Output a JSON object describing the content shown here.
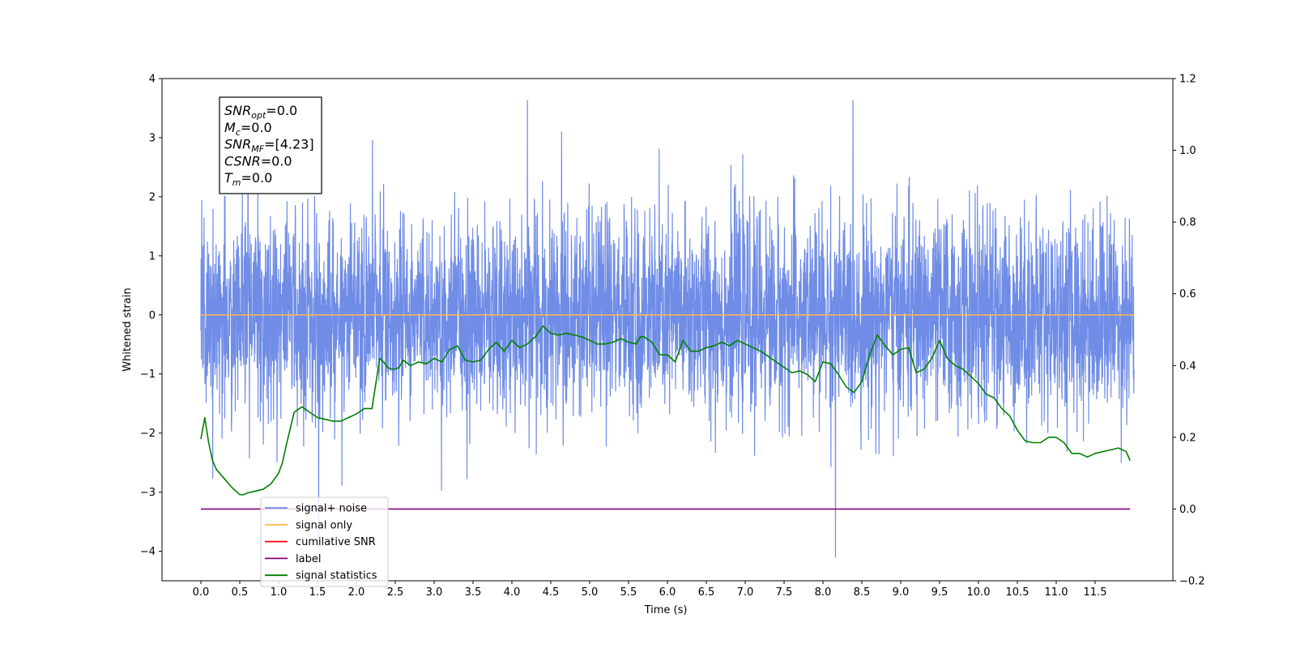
{
  "chart_data": {
    "type": "line",
    "xlabel": "Time (s)",
    "ylabel": "Whitened strain",
    "xlim": [
      -0.5,
      12.5
    ],
    "ylim": [
      -4.5,
      4.0
    ],
    "y2lim": [
      -0.2,
      1.2
    ],
    "x_ticks": [
      "0.0",
      "0.5",
      "1.0",
      "1.5",
      "2.0",
      "2.5",
      "3.0",
      "3.5",
      "4.0",
      "4.5",
      "5.0",
      "5.5",
      "6.0",
      "6.5",
      "7.0",
      "7.5",
      "8.0",
      "8.5",
      "9.0",
      "9.5",
      "10.0",
      "10.5",
      "11.0",
      "11.5"
    ],
    "y_ticks": [
      "4",
      "3",
      "2",
      "1",
      "0",
      "−1",
      "−2",
      "−3",
      "−4"
    ],
    "y2_ticks": [
      "1.2",
      "1.0",
      "0.8",
      "0.6",
      "0.4",
      "0.2",
      "0.0",
      "−0.2"
    ],
    "legend_position": "lower-left",
    "info_box": {
      "lines": [
        {
          "sym": "SNR",
          "sub": "opt",
          "val": "=0.0"
        },
        {
          "sym": "M",
          "sub": "c",
          "val": "=0.0"
        },
        {
          "sym": "SNR",
          "sub": "MF",
          "val": "=[4.23]"
        },
        {
          "sym": "CSNR",
          "sub": "",
          "val": "=0.0"
        },
        {
          "sym": "T",
          "sub": "m",
          "val": "=0.0"
        }
      ]
    },
    "series": [
      {
        "name": "signal+ noise",
        "color": "#6f8ce6",
        "axis": "left",
        "duration": 12.0,
        "samples": 4096,
        "std": 0.85,
        "positive_peak": 3.63,
        "negative_peak": -4.1
      },
      {
        "name": "signal only",
        "color": "#ffb74d",
        "axis": "left",
        "x": [
          0.0,
          12.0
        ],
        "y": [
          0.0,
          0.0
        ]
      },
      {
        "name": "cumilative SNR",
        "color": "#ff0000",
        "axis": "right",
        "x": [],
        "y": []
      },
      {
        "name": "label",
        "color": "#800080",
        "axis": "right",
        "x": [
          0.0,
          11.95
        ],
        "y": [
          0.0,
          0.0
        ]
      },
      {
        "name": "signal statistics",
        "color": "#008000",
        "axis": "right",
        "x": [
          0.0,
          0.05,
          0.1,
          0.15,
          0.2,
          0.3,
          0.4,
          0.5,
          0.55,
          0.6,
          0.7,
          0.8,
          0.9,
          1.0,
          1.05,
          1.1,
          1.2,
          1.3,
          1.4,
          1.5,
          1.6,
          1.7,
          1.8,
          1.9,
          2.0,
          2.1,
          2.2,
          2.3,
          2.35,
          2.4,
          2.45,
          2.5,
          2.55,
          2.6,
          2.7,
          2.8,
          2.9,
          3.0,
          3.1,
          3.2,
          3.3,
          3.4,
          3.5,
          3.6,
          3.7,
          3.8,
          3.9,
          4.0,
          4.1,
          4.2,
          4.3,
          4.4,
          4.5,
          4.6,
          4.7,
          4.8,
          4.9,
          5.0,
          5.1,
          5.2,
          5.3,
          5.4,
          5.5,
          5.6,
          5.65,
          5.7,
          5.8,
          5.9,
          6.0,
          6.1,
          6.15,
          6.2,
          6.3,
          6.4,
          6.5,
          6.6,
          6.7,
          6.8,
          6.9,
          7.0,
          7.1,
          7.2,
          7.3,
          7.4,
          7.5,
          7.6,
          7.7,
          7.8,
          7.9,
          8.0,
          8.1,
          8.2,
          8.3,
          8.4,
          8.5,
          8.6,
          8.7,
          8.8,
          8.9,
          9.0,
          9.1,
          9.2,
          9.3,
          9.4,
          9.5,
          9.6,
          9.7,
          9.8,
          9.9,
          10.0,
          10.1,
          10.2,
          10.3,
          10.4,
          10.5,
          10.6,
          10.7,
          10.8,
          10.9,
          11.0,
          11.1,
          11.2,
          11.3,
          11.4,
          11.5,
          11.6,
          11.7,
          11.8,
          11.9,
          11.95
        ],
        "y": [
          0.195,
          0.255,
          0.185,
          0.135,
          0.11,
          0.085,
          0.06,
          0.04,
          0.04,
          0.045,
          0.05,
          0.055,
          0.07,
          0.1,
          0.13,
          0.18,
          0.27,
          0.285,
          0.27,
          0.255,
          0.25,
          0.245,
          0.245,
          0.255,
          0.265,
          0.28,
          0.28,
          0.42,
          0.41,
          0.395,
          0.39,
          0.39,
          0.395,
          0.415,
          0.4,
          0.41,
          0.405,
          0.42,
          0.41,
          0.445,
          0.455,
          0.415,
          0.41,
          0.415,
          0.445,
          0.465,
          0.44,
          0.47,
          0.45,
          0.46,
          0.48,
          0.51,
          0.49,
          0.485,
          0.49,
          0.485,
          0.48,
          0.47,
          0.46,
          0.46,
          0.465,
          0.475,
          0.465,
          0.46,
          0.48,
          0.48,
          0.465,
          0.43,
          0.43,
          0.41,
          0.44,
          0.47,
          0.44,
          0.44,
          0.45,
          0.455,
          0.465,
          0.455,
          0.47,
          0.46,
          0.45,
          0.44,
          0.425,
          0.41,
          0.395,
          0.38,
          0.385,
          0.375,
          0.355,
          0.41,
          0.405,
          0.375,
          0.34,
          0.325,
          0.355,
          0.43,
          0.485,
          0.455,
          0.43,
          0.445,
          0.45,
          0.38,
          0.39,
          0.42,
          0.47,
          0.42,
          0.4,
          0.39,
          0.37,
          0.35,
          0.32,
          0.31,
          0.28,
          0.26,
          0.22,
          0.19,
          0.185,
          0.185,
          0.2,
          0.2,
          0.185,
          0.155,
          0.155,
          0.145,
          0.155,
          0.16,
          0.165,
          0.17,
          0.16,
          0.135
        ]
      }
    ]
  }
}
